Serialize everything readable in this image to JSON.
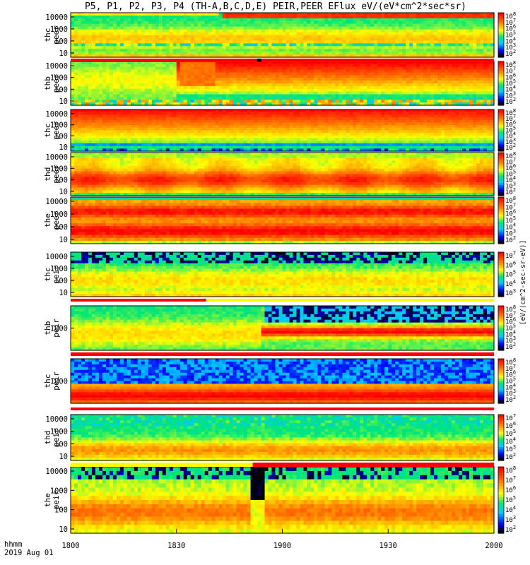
{
  "title": "P5, P1, P2, P3, P4 (TH-A,B,C,D,E) PEIR,PEER EFlux eV/(eV*cm^2*sec*sr)",
  "colorbar_unit": "[eV/(cm^2-sec-sr-eV)]",
  "time_axis": {
    "label_line1": "hhmm",
    "label_line2": "2019 Aug 01",
    "ticks": [
      "1800",
      "1830",
      "1900",
      "1930",
      "2000"
    ]
  },
  "chart_data": {
    "type": "heatmap",
    "title": "P5, P1, P2, P3, P4 (TH-A,B,C,D,E) PEIR,PEER EFlux eV/(eV*cm^2*sec*sr)",
    "x_range": [
      "1800",
      "2000"
    ],
    "y_scale": "log",
    "color_scale": "log",
    "colormap": [
      "#000000",
      "#0000ff",
      "#00c8ff",
      "#00e080",
      "#ffff00",
      "#ff8000",
      "#ff0000"
    ],
    "panels": [
      {
        "label": [
          "thc",
          "peer"
        ],
        "y_ticks": [
          "10000",
          "1000",
          "100",
          "10"
        ],
        "cb_ticks": [
          "10^8",
          "10^7",
          "10^6",
          "10^5",
          "10^4",
          "10^3",
          "10^2"
        ],
        "theme": "thc_peer"
      },
      {
        "label": [
          "thb",
          "peer"
        ],
        "y_ticks": [
          "10000",
          "1000",
          "100",
          "10"
        ],
        "cb_ticks": [
          "10^8",
          "10^7",
          "10^6",
          "10^5",
          "10^4",
          "10^3",
          "10^2"
        ],
        "theme": "thb_peer"
      },
      {
        "label": [
          "thc",
          "peer"
        ],
        "y_ticks": [
          "10000",
          "1000",
          "100",
          "10"
        ],
        "cb_ticks": [
          "10^8",
          "10^7",
          "10^6",
          "10^5",
          "10^4",
          "10^3",
          "10^2"
        ],
        "theme": "thc_peer2"
      },
      {
        "label": [
          "thd",
          "peer"
        ],
        "y_ticks": [
          "10000",
          "1000",
          "100",
          "10"
        ],
        "cb_ticks": [
          "10^8",
          "10^7",
          "10^6",
          "10^5",
          "10^4",
          "10^3",
          "10^2"
        ],
        "theme": "thd_peer"
      },
      {
        "label": [
          "the",
          "peer"
        ],
        "y_ticks": [
          "10000",
          "1000",
          "100",
          "10"
        ],
        "cb_ticks": [
          "10^8",
          "10^7",
          "10^6",
          "10^5",
          "10^4",
          "10^3",
          "10^2"
        ],
        "theme": "the_peer"
      },
      {
        "label": [
          "thc",
          "peir"
        ],
        "y_ticks": [
          "10000",
          "1000",
          "100",
          "10"
        ],
        "cb_ticks": [
          "10^7",
          "10^6",
          "10^5",
          "10^4",
          "10^3"
        ],
        "theme": "thc_peir"
      },
      {
        "label": [
          "thb",
          "peir"
        ],
        "y_ticks": [
          "1000"
        ],
        "cb_ticks": [
          "10^8",
          "10^7",
          "10^6",
          "10^5",
          "10^4",
          "10^3",
          "10^2"
        ],
        "theme": "thb_peir"
      },
      {
        "label": [
          "thc",
          "peir"
        ],
        "y_ticks": [
          "1000"
        ],
        "cb_ticks": [
          "10^8",
          "10^7",
          "10^6",
          "10^5",
          "10^4",
          "10^3",
          "10^2"
        ],
        "theme": "thc_peir2"
      },
      {
        "label": [
          "thd",
          "peir"
        ],
        "y_ticks": [
          "10000",
          "1000",
          "100",
          "10"
        ],
        "cb_ticks": [
          "10^7",
          "10^6",
          "10^5",
          "10^4",
          "10^3",
          "10^2"
        ],
        "theme": "thd_peir"
      },
      {
        "label": [
          "the",
          "peir"
        ],
        "y_ticks": [
          "10000",
          "1000",
          "100",
          "10"
        ],
        "cb_ticks": [
          "10^8",
          "10^7",
          "10^6",
          "10^5",
          "10^4",
          "10^3",
          "10^2"
        ],
        "theme": "the_peir"
      }
    ]
  }
}
